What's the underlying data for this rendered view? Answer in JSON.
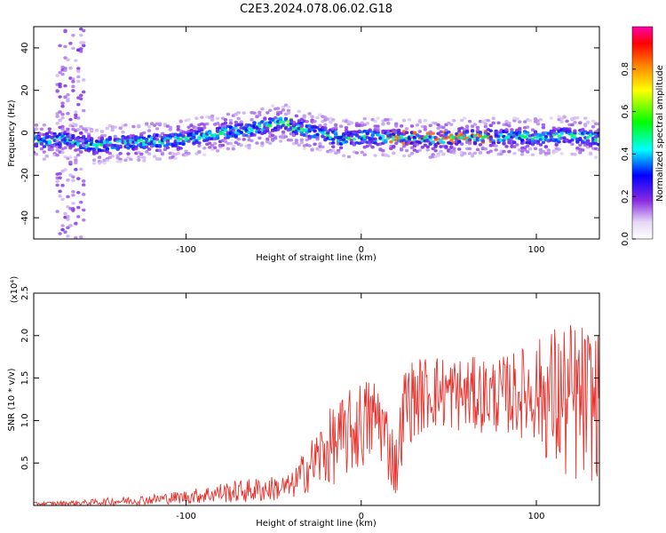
{
  "figure_title": "C2E3.2024.078.06.02.G18",
  "chart_data": [
    {
      "type": "heatmap",
      "title": "",
      "xlabel": "Height of straight line (km)",
      "ylabel": "Frequency (Hz)",
      "xlim": [
        -187,
        136
      ],
      "ylim": [
        -50,
        50
      ],
      "xticks": [
        -100,
        0,
        100
      ],
      "yticks": [
        -40,
        -20,
        0,
        20,
        40
      ],
      "grid": false,
      "colorbar": {
        "label": "Normalized spectral amplitude",
        "range": [
          0,
          1
        ],
        "ticks": [
          "0.0",
          "0.2",
          "0.4",
          "0.6",
          "0.8"
        ],
        "colormap": [
          "#ffffff",
          "#8a2be2",
          "#0000ff",
          "#00ffff",
          "#00ff00",
          "#ffff00",
          "#ff8000",
          "#ff0000",
          "#ff00aa"
        ]
      },
      "ridge": {
        "x": [
          -187,
          -170,
          -155,
          -140,
          -120,
          -100,
          -80,
          -60,
          -45,
          -35,
          -20,
          -10,
          0,
          10,
          20,
          40,
          60,
          80,
          100,
          120,
          136
        ],
        "y": [
          -4,
          -3,
          -6,
          -5,
          -4,
          -3,
          0,
          2,
          5,
          2,
          -1,
          -3,
          -2,
          -2,
          -2,
          -3,
          -2,
          -2,
          -2,
          -1,
          -3
        ]
      }
    },
    {
      "type": "line",
      "title": "",
      "xlabel": "Height of straight line (km)",
      "ylabel": "SNR (10 * v/v)",
      "y_multiplier": "(x10⁴)",
      "xlim": [
        -187,
        136
      ],
      "ylim": [
        0,
        2.5
      ],
      "xticks": [
        -100,
        0,
        100
      ],
      "yticks": [
        0.5,
        1.0,
        1.5,
        2.0,
        2.5
      ],
      "grid": false,
      "line_color": "#e8322d",
      "envelope_x": [
        -187,
        -160,
        -140,
        -120,
        -100,
        -80,
        -60,
        -40,
        -30,
        -20,
        -10,
        0,
        10,
        20,
        25,
        40,
        60,
        80,
        100,
        110,
        120,
        136
      ],
      "envelope_mean": [
        0.02,
        0.03,
        0.05,
        0.07,
        0.1,
        0.15,
        0.18,
        0.22,
        0.45,
        0.65,
        0.8,
        0.95,
        1.05,
        0.45,
        1.2,
        1.35,
        1.3,
        1.3,
        1.35,
        1.25,
        1.2,
        1.2
      ],
      "envelope_amp": [
        0.02,
        0.03,
        0.05,
        0.06,
        0.08,
        0.12,
        0.15,
        0.15,
        0.3,
        0.45,
        0.5,
        0.55,
        0.5,
        0.4,
        0.5,
        0.45,
        0.45,
        0.45,
        0.6,
        0.9,
        1.0,
        0.9
      ]
    }
  ]
}
